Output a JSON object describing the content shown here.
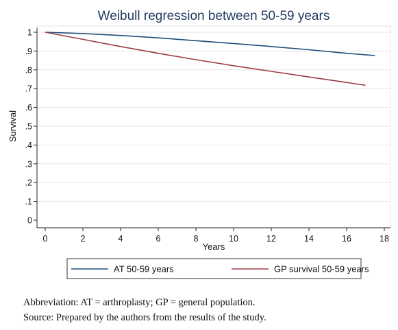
{
  "chart_data": {
    "type": "line",
    "title": "Weibull regression between 50-59 years",
    "xlabel": "Years",
    "ylabel": "Survival",
    "xlim": [
      0,
      18
    ],
    "ylim": [
      0,
      1
    ],
    "x_ticks": [
      "0",
      "2",
      "4",
      "6",
      "8",
      "10",
      "12",
      "14",
      "16",
      "18"
    ],
    "y_ticks": [
      "0",
      ".1",
      ".2",
      ".3",
      ".4",
      ".5",
      ".6",
      ".7",
      ".8",
      ".9",
      "1"
    ],
    "grid": true,
    "legend_position": "bottom",
    "series": [
      {
        "name": "AT 50-59 years",
        "color": "#1f4e79",
        "x": [
          0,
          2,
          4,
          6,
          8,
          10,
          12,
          14,
          16,
          17.5
        ],
        "y": [
          1.0,
          0.993,
          0.983,
          0.97,
          0.955,
          0.94,
          0.924,
          0.907,
          0.888,
          0.876
        ]
      },
      {
        "name": "GP survival 50-59 years",
        "color": "#9e3b47",
        "x": [
          0,
          2,
          4,
          6,
          8,
          10,
          12,
          14,
          16,
          17
        ],
        "y": [
          1.0,
          0.962,
          0.924,
          0.888,
          0.854,
          0.822,
          0.792,
          0.762,
          0.733,
          0.718
        ]
      }
    ]
  },
  "notes": {
    "abbreviation": "Abbreviation: AT = arthroplasty; GP = general population.",
    "source": "Source: Prepared by the authors from the results of the study."
  }
}
